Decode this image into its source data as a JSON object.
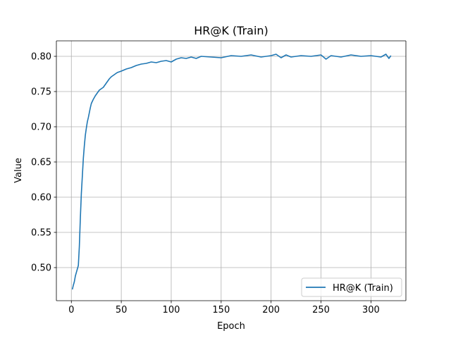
{
  "chart_data": {
    "type": "line",
    "title": "HR@K (Train)",
    "xlabel": "Epoch",
    "ylabel": "Value",
    "xlim": [
      -15,
      335
    ],
    "ylim": [
      0.453,
      0.822
    ],
    "xticks": [
      0,
      50,
      100,
      150,
      200,
      250,
      300
    ],
    "yticks": [
      0.5,
      0.55,
      0.6,
      0.65,
      0.7,
      0.75,
      0.8
    ],
    "ytick_labels": [
      "0.50",
      "0.55",
      "0.60",
      "0.65",
      "0.70",
      "0.75",
      "0.80"
    ],
    "grid": true,
    "legend_position": "lower-right",
    "line_color": "#1f77b4",
    "series": [
      {
        "name": "HR@K (Train)",
        "x": [
          1,
          2,
          3,
          4,
          5,
          6,
          7,
          8,
          9,
          10,
          11,
          12,
          13,
          14,
          15,
          16,
          17,
          18,
          19,
          20,
          22,
          24,
          26,
          28,
          30,
          32,
          34,
          36,
          38,
          40,
          42,
          44,
          46,
          48,
          50,
          55,
          60,
          65,
          70,
          75,
          80,
          85,
          90,
          95,
          100,
          105,
          110,
          115,
          120,
          125,
          130,
          140,
          150,
          160,
          170,
          180,
          190,
          200,
          205,
          210,
          215,
          220,
          230,
          240,
          250,
          255,
          260,
          270,
          280,
          290,
          300,
          310,
          315,
          318,
          320
        ],
        "values": [
          0.469,
          0.475,
          0.48,
          0.488,
          0.493,
          0.498,
          0.503,
          0.53,
          0.57,
          0.605,
          0.63,
          0.655,
          0.673,
          0.688,
          0.698,
          0.707,
          0.713,
          0.72,
          0.727,
          0.733,
          0.739,
          0.744,
          0.748,
          0.752,
          0.754,
          0.756,
          0.76,
          0.764,
          0.768,
          0.771,
          0.773,
          0.775,
          0.777,
          0.778,
          0.779,
          0.782,
          0.784,
          0.787,
          0.789,
          0.79,
          0.792,
          0.791,
          0.793,
          0.794,
          0.792,
          0.796,
          0.798,
          0.797,
          0.799,
          0.797,
          0.8,
          0.799,
          0.798,
          0.801,
          0.8,
          0.802,
          0.799,
          0.801,
          0.803,
          0.798,
          0.802,
          0.799,
          0.801,
          0.8,
          0.802,
          0.796,
          0.801,
          0.799,
          0.802,
          0.8,
          0.801,
          0.799,
          0.803,
          0.797,
          0.801
        ]
      }
    ]
  }
}
